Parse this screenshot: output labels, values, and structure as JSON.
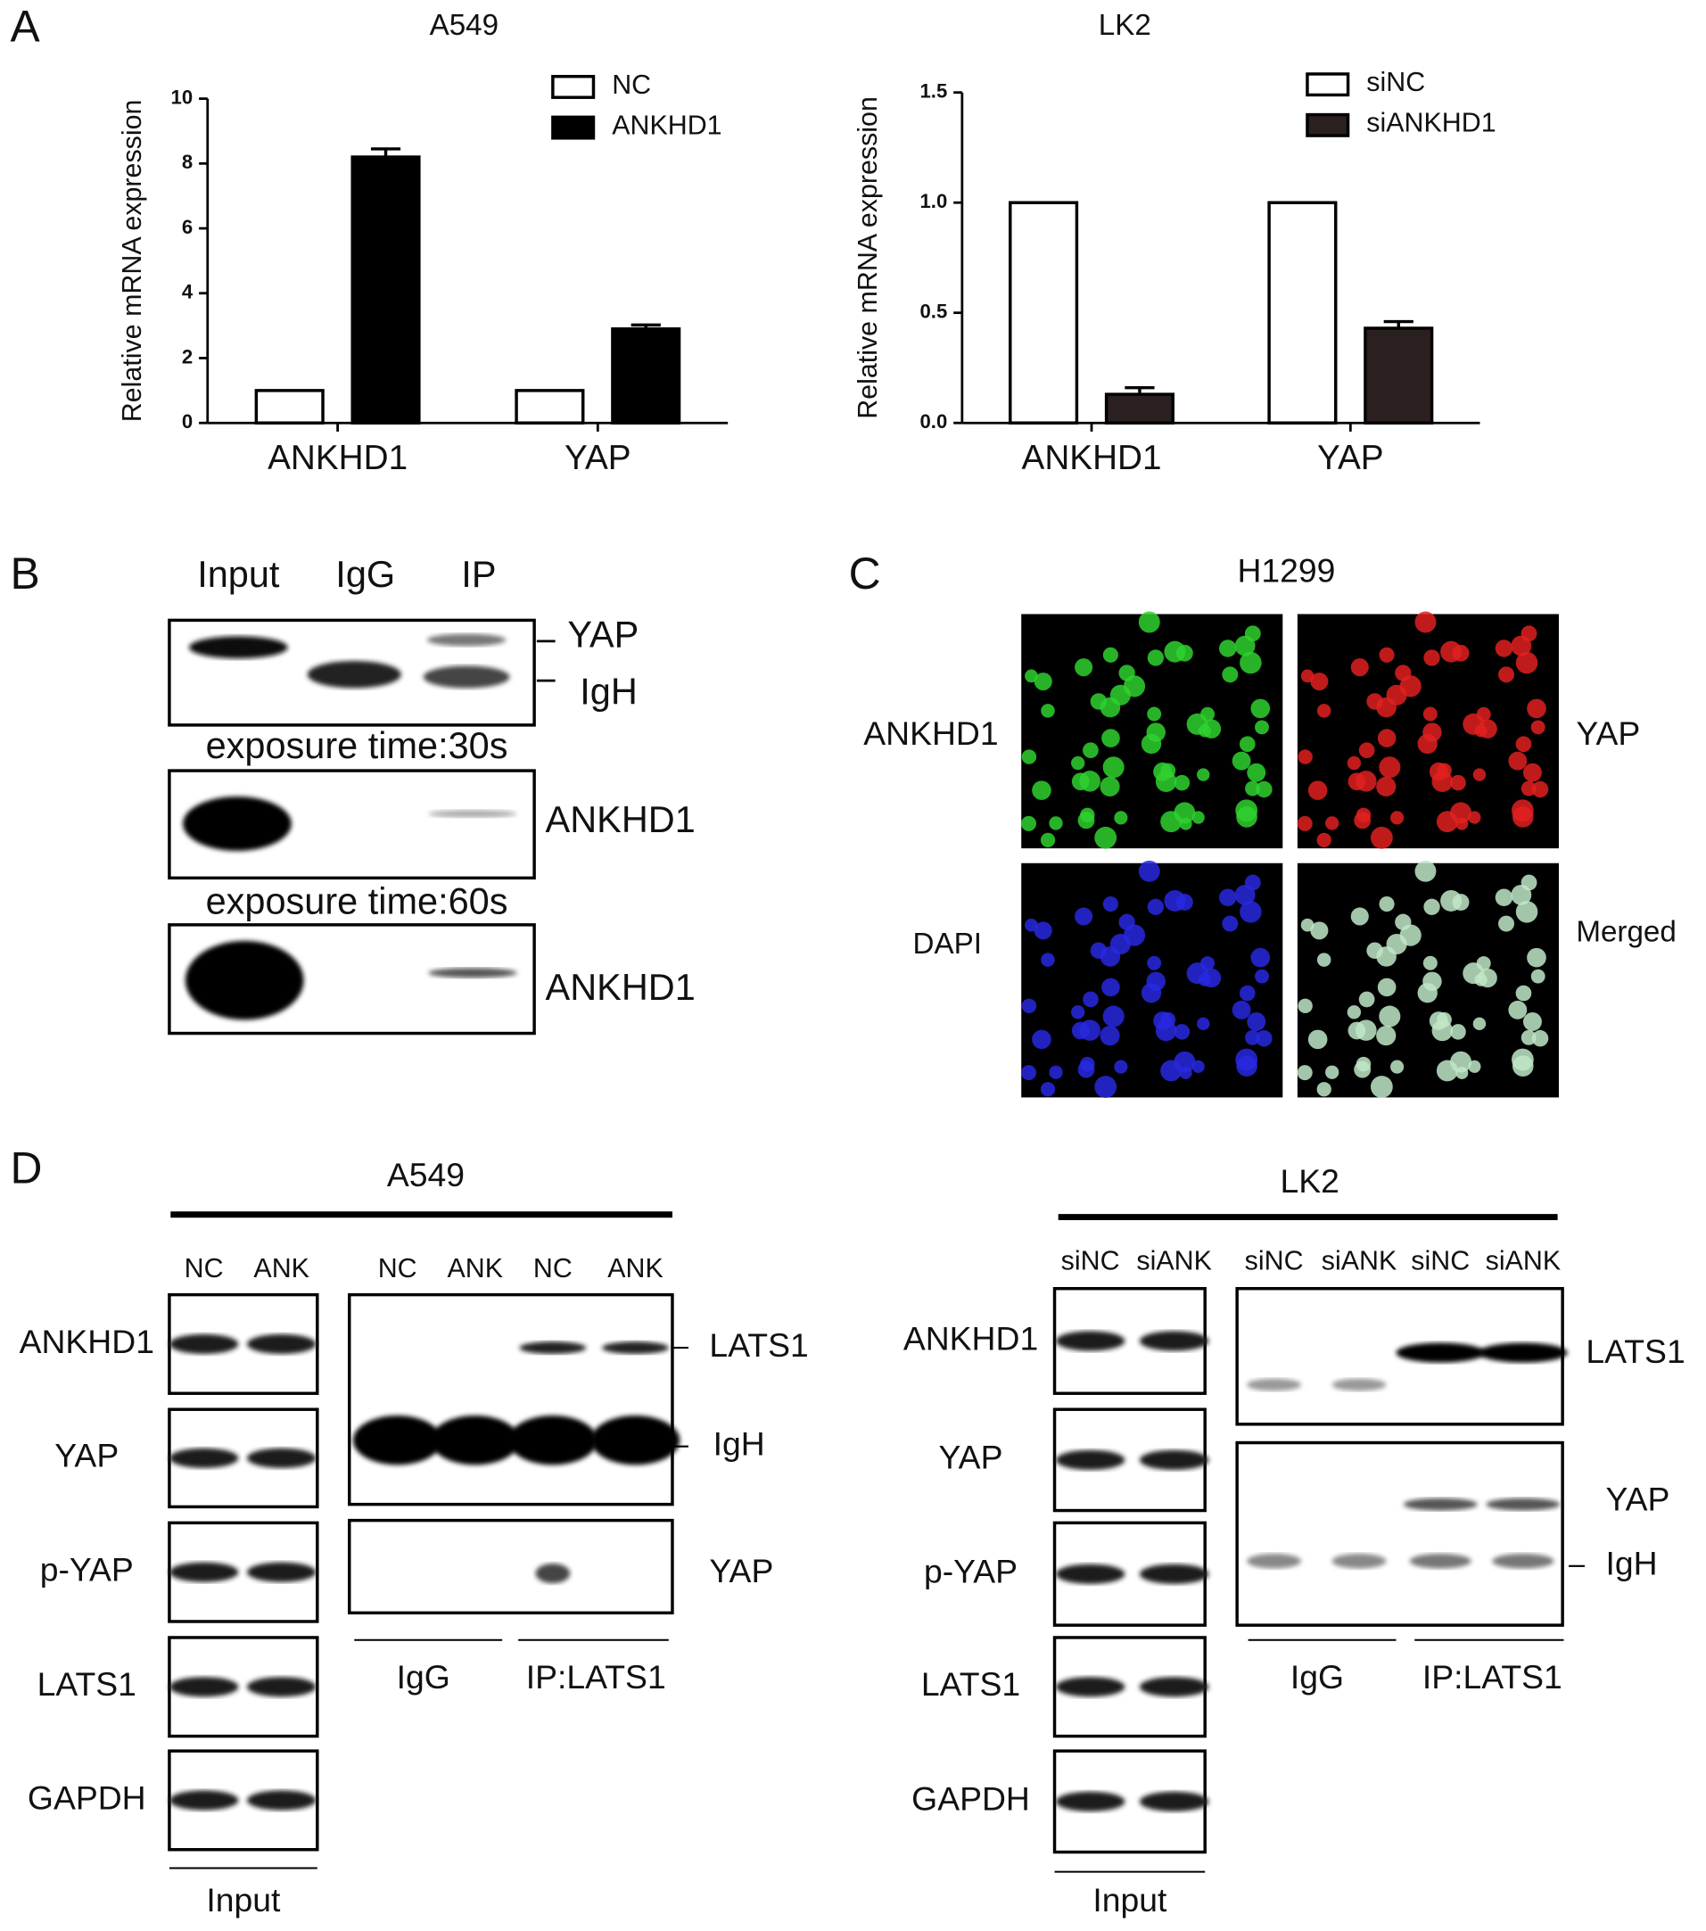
{
  "chart_data": [
    {
      "type": "bar",
      "title": "A549",
      "ylabel": "Relative mRNA expression",
      "categories": [
        "ANKHD1",
        "YAP"
      ],
      "series": [
        {
          "name": "NC",
          "color": "#ffffff",
          "values": [
            1,
            1
          ]
        },
        {
          "name": "ANKHD1",
          "color": "#000000",
          "values": [
            8.2,
            2.9
          ],
          "errors": [
            0.25,
            0.12
          ]
        }
      ],
      "ylim": [
        0,
        10
      ],
      "yticks": [
        0,
        2,
        4,
        6,
        8,
        10
      ],
      "grid": false,
      "legend": "upper right"
    },
    {
      "type": "bar",
      "title": "LK2",
      "ylabel": "Relative mRNA expression",
      "categories": [
        "ANKHD1",
        "YAP"
      ],
      "series": [
        {
          "name": "siNC",
          "color": "#ffffff",
          "values": [
            1,
            1
          ]
        },
        {
          "name": "siANKHD1",
          "color": "#2a2020",
          "values": [
            0.13,
            0.43
          ],
          "errors": [
            0.03,
            0.03
          ]
        }
      ],
      "ylim": [
        0,
        1.5
      ],
      "yticks": [
        {
          "value": 0,
          "label": "0.0"
        },
        {
          "value": 0.5,
          "label": "0.5"
        },
        {
          "value": 1,
          "label": "1.0"
        },
        {
          "value": 1.5,
          "label": "1.5"
        }
      ],
      "grid": false,
      "legend": "upper right"
    }
  ],
  "panel_labels": [
    "A",
    "B",
    "C",
    "D"
  ],
  "panel_b": {
    "lanes": [
      "Input",
      "IgG",
      "IP"
    ],
    "bands": [
      "YAP",
      "IgH",
      "ANKHD1",
      "ANKHD1"
    ],
    "exposures": [
      "exposure time:30s",
      "exposure time:60s"
    ]
  },
  "panel_c": {
    "title": "H1299",
    "channels": [
      "ANKHD1",
      "YAP",
      "DAPI",
      "Merged"
    ]
  },
  "panel_d": {
    "left": {
      "title": "A549",
      "input_lanes": [
        "NC",
        "ANK"
      ],
      "ip_lanes": [
        "NC",
        "ANK",
        "NC",
        "ANK"
      ],
      "rows": [
        "ANKHD1",
        "YAP",
        "p-YAP",
        "LATS1",
        "GAPDH"
      ],
      "ip_bands": [
        "LATS1",
        "IgH",
        "YAP"
      ],
      "groups": [
        "Input",
        "IgG",
        "IP:LATS1"
      ]
    },
    "right": {
      "title": "LK2",
      "input_lanes": [
        "siNC",
        "siANK"
      ],
      "ip_lanes": [
        "siNC",
        "siANK",
        "siNC",
        "siANK"
      ],
      "rows": [
        "ANKHD1",
        "YAP",
        "p-YAP",
        "LATS1",
        "GAPDH"
      ],
      "ip_bands": [
        "LATS1",
        "YAP",
        "IgH"
      ],
      "groups": [
        "Input",
        "IgG",
        "IP:LATS1"
      ]
    }
  }
}
